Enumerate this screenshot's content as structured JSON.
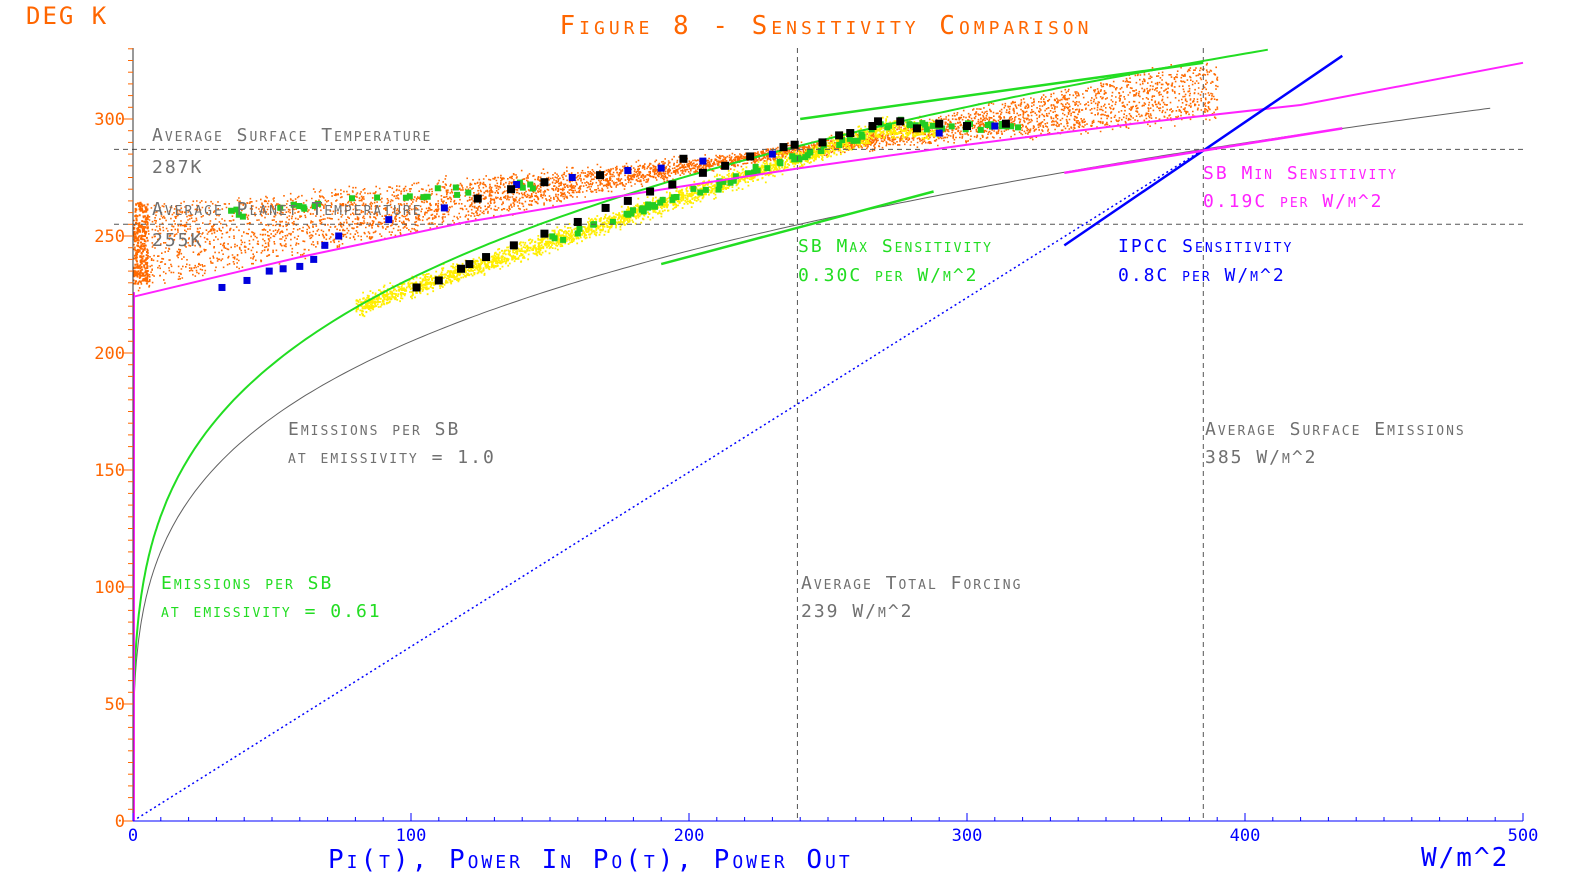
{
  "chart_data": {
    "type": "scatter",
    "title": "Figure 8 - Sensitivity Comparison",
    "y_unit_label": "DEG K",
    "xlabel": "Pi(t), Power In  Po(t), Power Out",
    "x_unit_label": "W/m^2",
    "xlim": [
      0,
      500
    ],
    "ylim": [
      0,
      330
    ],
    "x_ticks": [
      "0",
      "100",
      "200",
      "300",
      "400",
      "500"
    ],
    "y_ticks": [
      "0",
      "50",
      "100",
      "150",
      "200",
      "250",
      "300"
    ],
    "reference_lines": {
      "vertical": [
        239,
        385
      ],
      "horizontal": [
        287,
        255
      ]
    },
    "annotations": {
      "avg_surface_temp": [
        "Average Surface Temperature",
        "287K"
      ],
      "avg_planet_temp": [
        "Average Planet Temperature",
        "255K"
      ],
      "emissions_sb_1": [
        "Emissions per SB",
        "at emissivity = 1.0"
      ],
      "emissions_sb_061": [
        "Emissions per SB",
        "at emissivity = 0.61"
      ],
      "avg_total_forcing": [
        "Average Total Forcing",
        "239 W/m^2"
      ],
      "avg_surface_emissions": [
        "Average Surface Emissions",
        "385 W/m^2"
      ],
      "sb_max_sens": [
        "SB Max Sensitivity",
        "0.30C per W/m^2"
      ],
      "ipcc_sens": [
        "IPCC Sensitivity",
        "0.8C per W/m^2"
      ],
      "sb_min_sens": [
        "SB Min Sensitivity",
        "0.19C per W/m^2"
      ]
    },
    "series": [
      {
        "kind": "sb_curve",
        "emissivity": 1.0,
        "color": "#606060"
      },
      {
        "kind": "sb_curve",
        "emissivity": 0.61,
        "color": "#22dd22"
      },
      {
        "kind": "line",
        "color": "#ff22ff",
        "points": [
          [
            0,
            224
          ],
          [
            60,
            241
          ],
          [
            120,
            256
          ],
          [
            180,
            268
          ],
          [
            240,
            279
          ],
          [
            300,
            289
          ],
          [
            360,
            298
          ],
          [
            420,
            306
          ],
          [
            500,
            324
          ]
        ]
      },
      {
        "kind": "dotted_line",
        "color": "#0000ff",
        "points": [
          [
            0,
            0
          ],
          [
            385,
            287
          ]
        ]
      },
      {
        "kind": "tangent",
        "color": "#22dd22",
        "points": [
          [
            190,
            238
          ],
          [
            288,
            269
          ]
        ]
      },
      {
        "kind": "tangent",
        "color": "#0000ff",
        "points": [
          [
            335,
            246
          ],
          [
            435,
            327
          ]
        ]
      },
      {
        "kind": "tangent",
        "color": "#ff22ff",
        "points": [
          [
            335,
            277
          ],
          [
            435,
            296
          ]
        ]
      },
      {
        "kind": "tangent",
        "color": "#22dd22",
        "points": [
          [
            240,
            300
          ],
          [
            385,
            324
          ]
        ]
      },
      {
        "kind": "scatter",
        "name": "",
        "color": "#ff6600",
        "style": "cloud"
      },
      {
        "kind": "scatter",
        "name": "",
        "color": "#ffee00",
        "style": "band"
      },
      {
        "kind": "scatter",
        "name": "",
        "color": "#22cc22",
        "style": "squares"
      },
      {
        "kind": "scatter",
        "name": "",
        "color": "#0000dd",
        "points": [
          [
            32,
            228
          ],
          [
            41,
            231
          ],
          [
            49,
            235
          ],
          [
            54,
            236
          ],
          [
            60,
            237
          ],
          [
            65,
            240
          ],
          [
            69,
            246
          ],
          [
            74,
            250
          ],
          [
            92,
            257
          ],
          [
            112,
            262
          ],
          [
            138,
            272
          ],
          [
            158,
            275
          ],
          [
            168,
            276
          ],
          [
            178,
            278
          ],
          [
            190,
            279
          ],
          [
            205,
            282
          ],
          [
            230,
            285
          ],
          [
            290,
            294
          ],
          [
            310,
            297
          ]
        ]
      },
      {
        "kind": "scatter",
        "name": "",
        "color": "#000000",
        "points": [
          [
            102,
            228
          ],
          [
            110,
            231
          ],
          [
            118,
            236
          ],
          [
            121,
            238
          ],
          [
            127,
            241
          ],
          [
            137,
            246
          ],
          [
            148,
            251
          ],
          [
            160,
            256
          ],
          [
            170,
            262
          ],
          [
            178,
            265
          ],
          [
            186,
            269
          ],
          [
            194,
            272
          ],
          [
            205,
            277
          ],
          [
            213,
            280
          ],
          [
            222,
            284
          ],
          [
            234,
            288
          ],
          [
            248,
            290
          ],
          [
            258,
            294
          ],
          [
            266,
            297
          ],
          [
            276,
            299
          ],
          [
            290,
            298
          ],
          [
            300,
            297
          ],
          [
            314,
            298
          ],
          [
            124,
            266
          ],
          [
            136,
            270
          ],
          [
            148,
            273
          ],
          [
            168,
            276
          ],
          [
            198,
            283
          ],
          [
            238,
            289
          ],
          [
            254,
            293
          ],
          [
            268,
            299
          ],
          [
            282,
            296
          ]
        ]
      }
    ]
  }
}
